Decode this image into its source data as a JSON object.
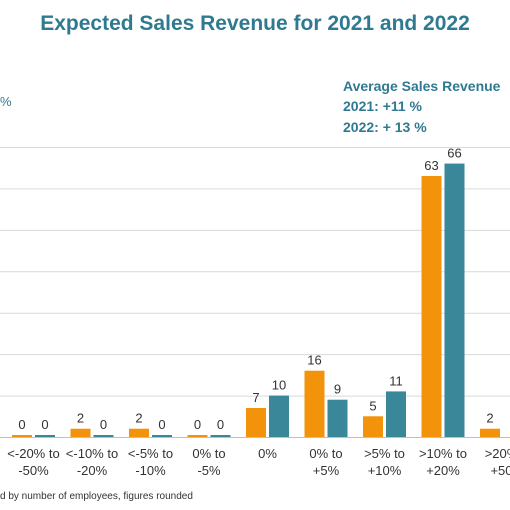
{
  "chart_data": {
    "type": "bar",
    "title": "Expected Sales Revenue for 2021 and 2022",
    "y_unit_label": "%",
    "categories": [
      [
        "<-20% to",
        "-50%"
      ],
      [
        "<-10% to",
        "-20%"
      ],
      [
        "<-5% to",
        "-10%"
      ],
      [
        "0% to",
        "-5%"
      ],
      [
        "0%"
      ],
      [
        "0% to",
        "+5%"
      ],
      [
        ">5% to",
        "+10%"
      ],
      [
        ">10% to",
        "+20%"
      ],
      [
        ">20%",
        "+50"
      ]
    ],
    "series": [
      {
        "values": [
          0,
          2,
          2,
          0,
          7,
          16,
          5,
          63,
          2
        ],
        "color": "#f2930b"
      },
      {
        "values": [
          0,
          0,
          0,
          0,
          10,
          9,
          11,
          66,
          null
        ],
        "color": "#3a879a"
      }
    ],
    "ylim": [
      0,
      70
    ],
    "grid": true,
    "annotation": {
      "heading": "Average Sales Revenue",
      "line1": "2021: +11 %",
      "line2": "2022: + 13 %"
    },
    "footnote": "d by number of employees, figures rounded"
  }
}
